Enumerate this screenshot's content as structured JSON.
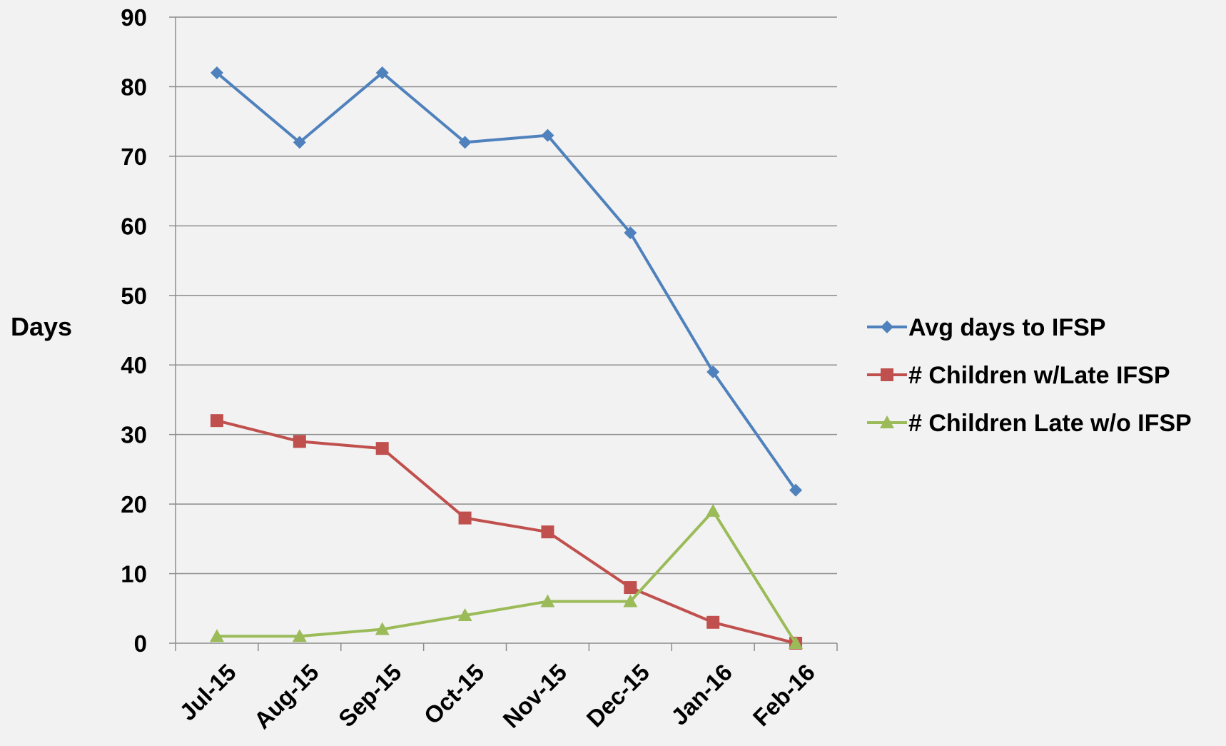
{
  "chart_data": {
    "type": "line",
    "title": "",
    "xlabel": "",
    "ylabel": "Days",
    "ylim": [
      0,
      90
    ],
    "y_ticks": [
      "0",
      "10",
      "20",
      "30",
      "40",
      "50",
      "60",
      "70",
      "80",
      "90"
    ],
    "categories": [
      "Jul-15",
      "Aug-15",
      "Sep-15",
      "Oct-15",
      "Nov-15",
      "Dec-15",
      "Jan-16",
      "Feb-16"
    ],
    "grid": "horizontal",
    "legend_position": "right",
    "series": [
      {
        "name": "Avg days to IFSP",
        "color": "#4f81bd",
        "marker": "diamond",
        "values": [
          82,
          72,
          82,
          72,
          73,
          59,
          39,
          22
        ]
      },
      {
        "name": "# Children w/Late IFSP",
        "color": "#c0504d",
        "marker": "square",
        "values": [
          32,
          29,
          28,
          18,
          16,
          8,
          3,
          0
        ]
      },
      {
        "name": "# Children Late w/o IFSP",
        "color": "#9bbb59",
        "marker": "triangle",
        "values": [
          1,
          1,
          2,
          4,
          6,
          6,
          19,
          0
        ]
      }
    ]
  }
}
